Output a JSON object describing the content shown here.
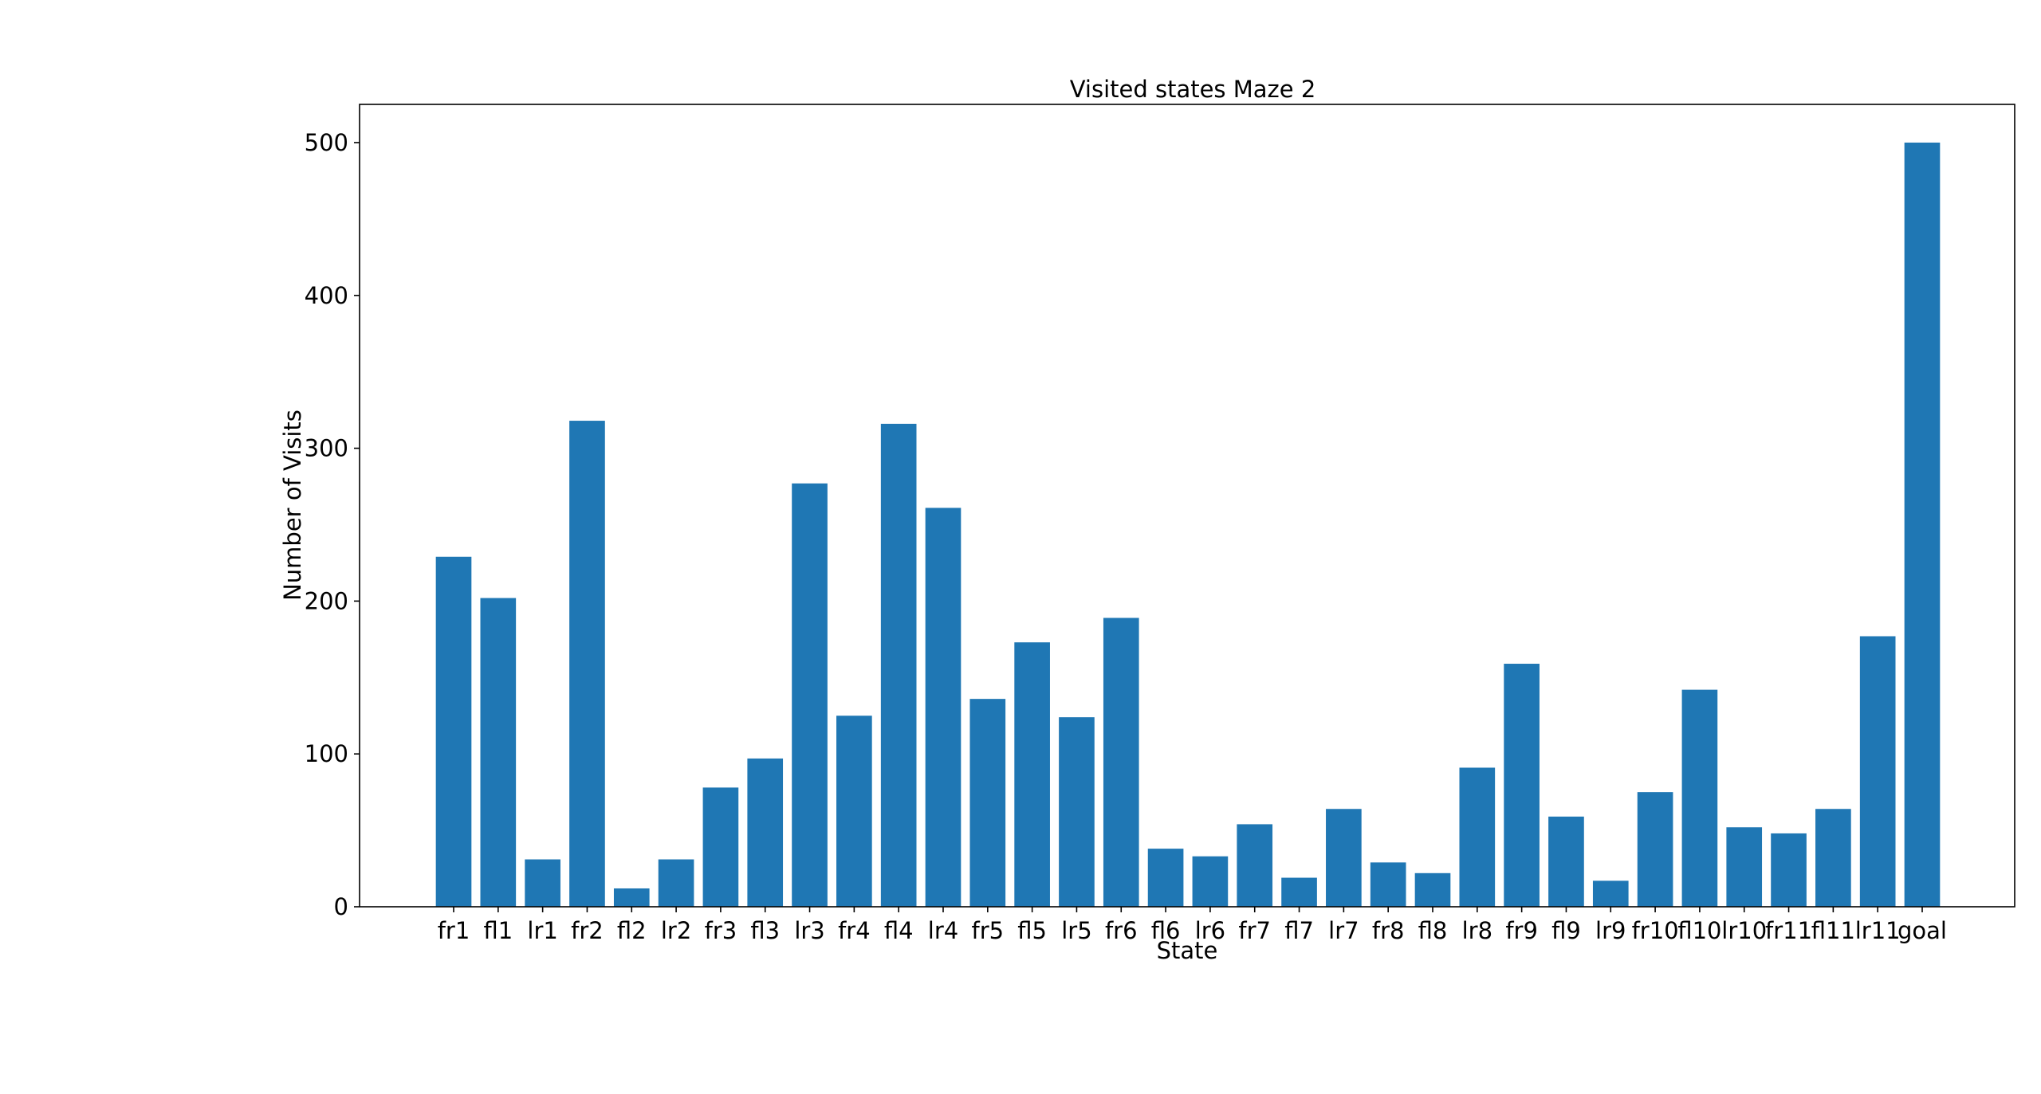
{
  "chart_data": {
    "type": "bar",
    "title": "Visited states Maze 2",
    "xlabel": "State",
    "ylabel": "Number of Visits",
    "categories": [
      "fr1",
      "fl1",
      "lr1",
      "fr2",
      "fl2",
      "lr2",
      "fr3",
      "fl3",
      "lr3",
      "fr4",
      "fl4",
      "lr4",
      "fr5",
      "fl5",
      "lr5",
      "fr6",
      "fl6",
      "lr6",
      "fr7",
      "fl7",
      "lr7",
      "fr8",
      "fl8",
      "lr8",
      "fr9",
      "fl9",
      "lr9",
      "fr10",
      "fl10",
      "lr10",
      "fr11",
      "fl11",
      "lr11",
      "goal"
    ],
    "values": [
      229,
      202,
      31,
      318,
      12,
      31,
      78,
      97,
      277,
      125,
      316,
      261,
      136,
      173,
      124,
      189,
      38,
      33,
      54,
      19,
      64,
      29,
      22,
      91,
      159,
      59,
      17,
      75,
      142,
      52,
      48,
      64,
      177,
      500
    ],
    "ylim": [
      0,
      525
    ],
    "yticks": [
      0,
      100,
      200,
      300,
      400,
      500
    ],
    "grid": false,
    "bar_color": "#1f77b4"
  }
}
